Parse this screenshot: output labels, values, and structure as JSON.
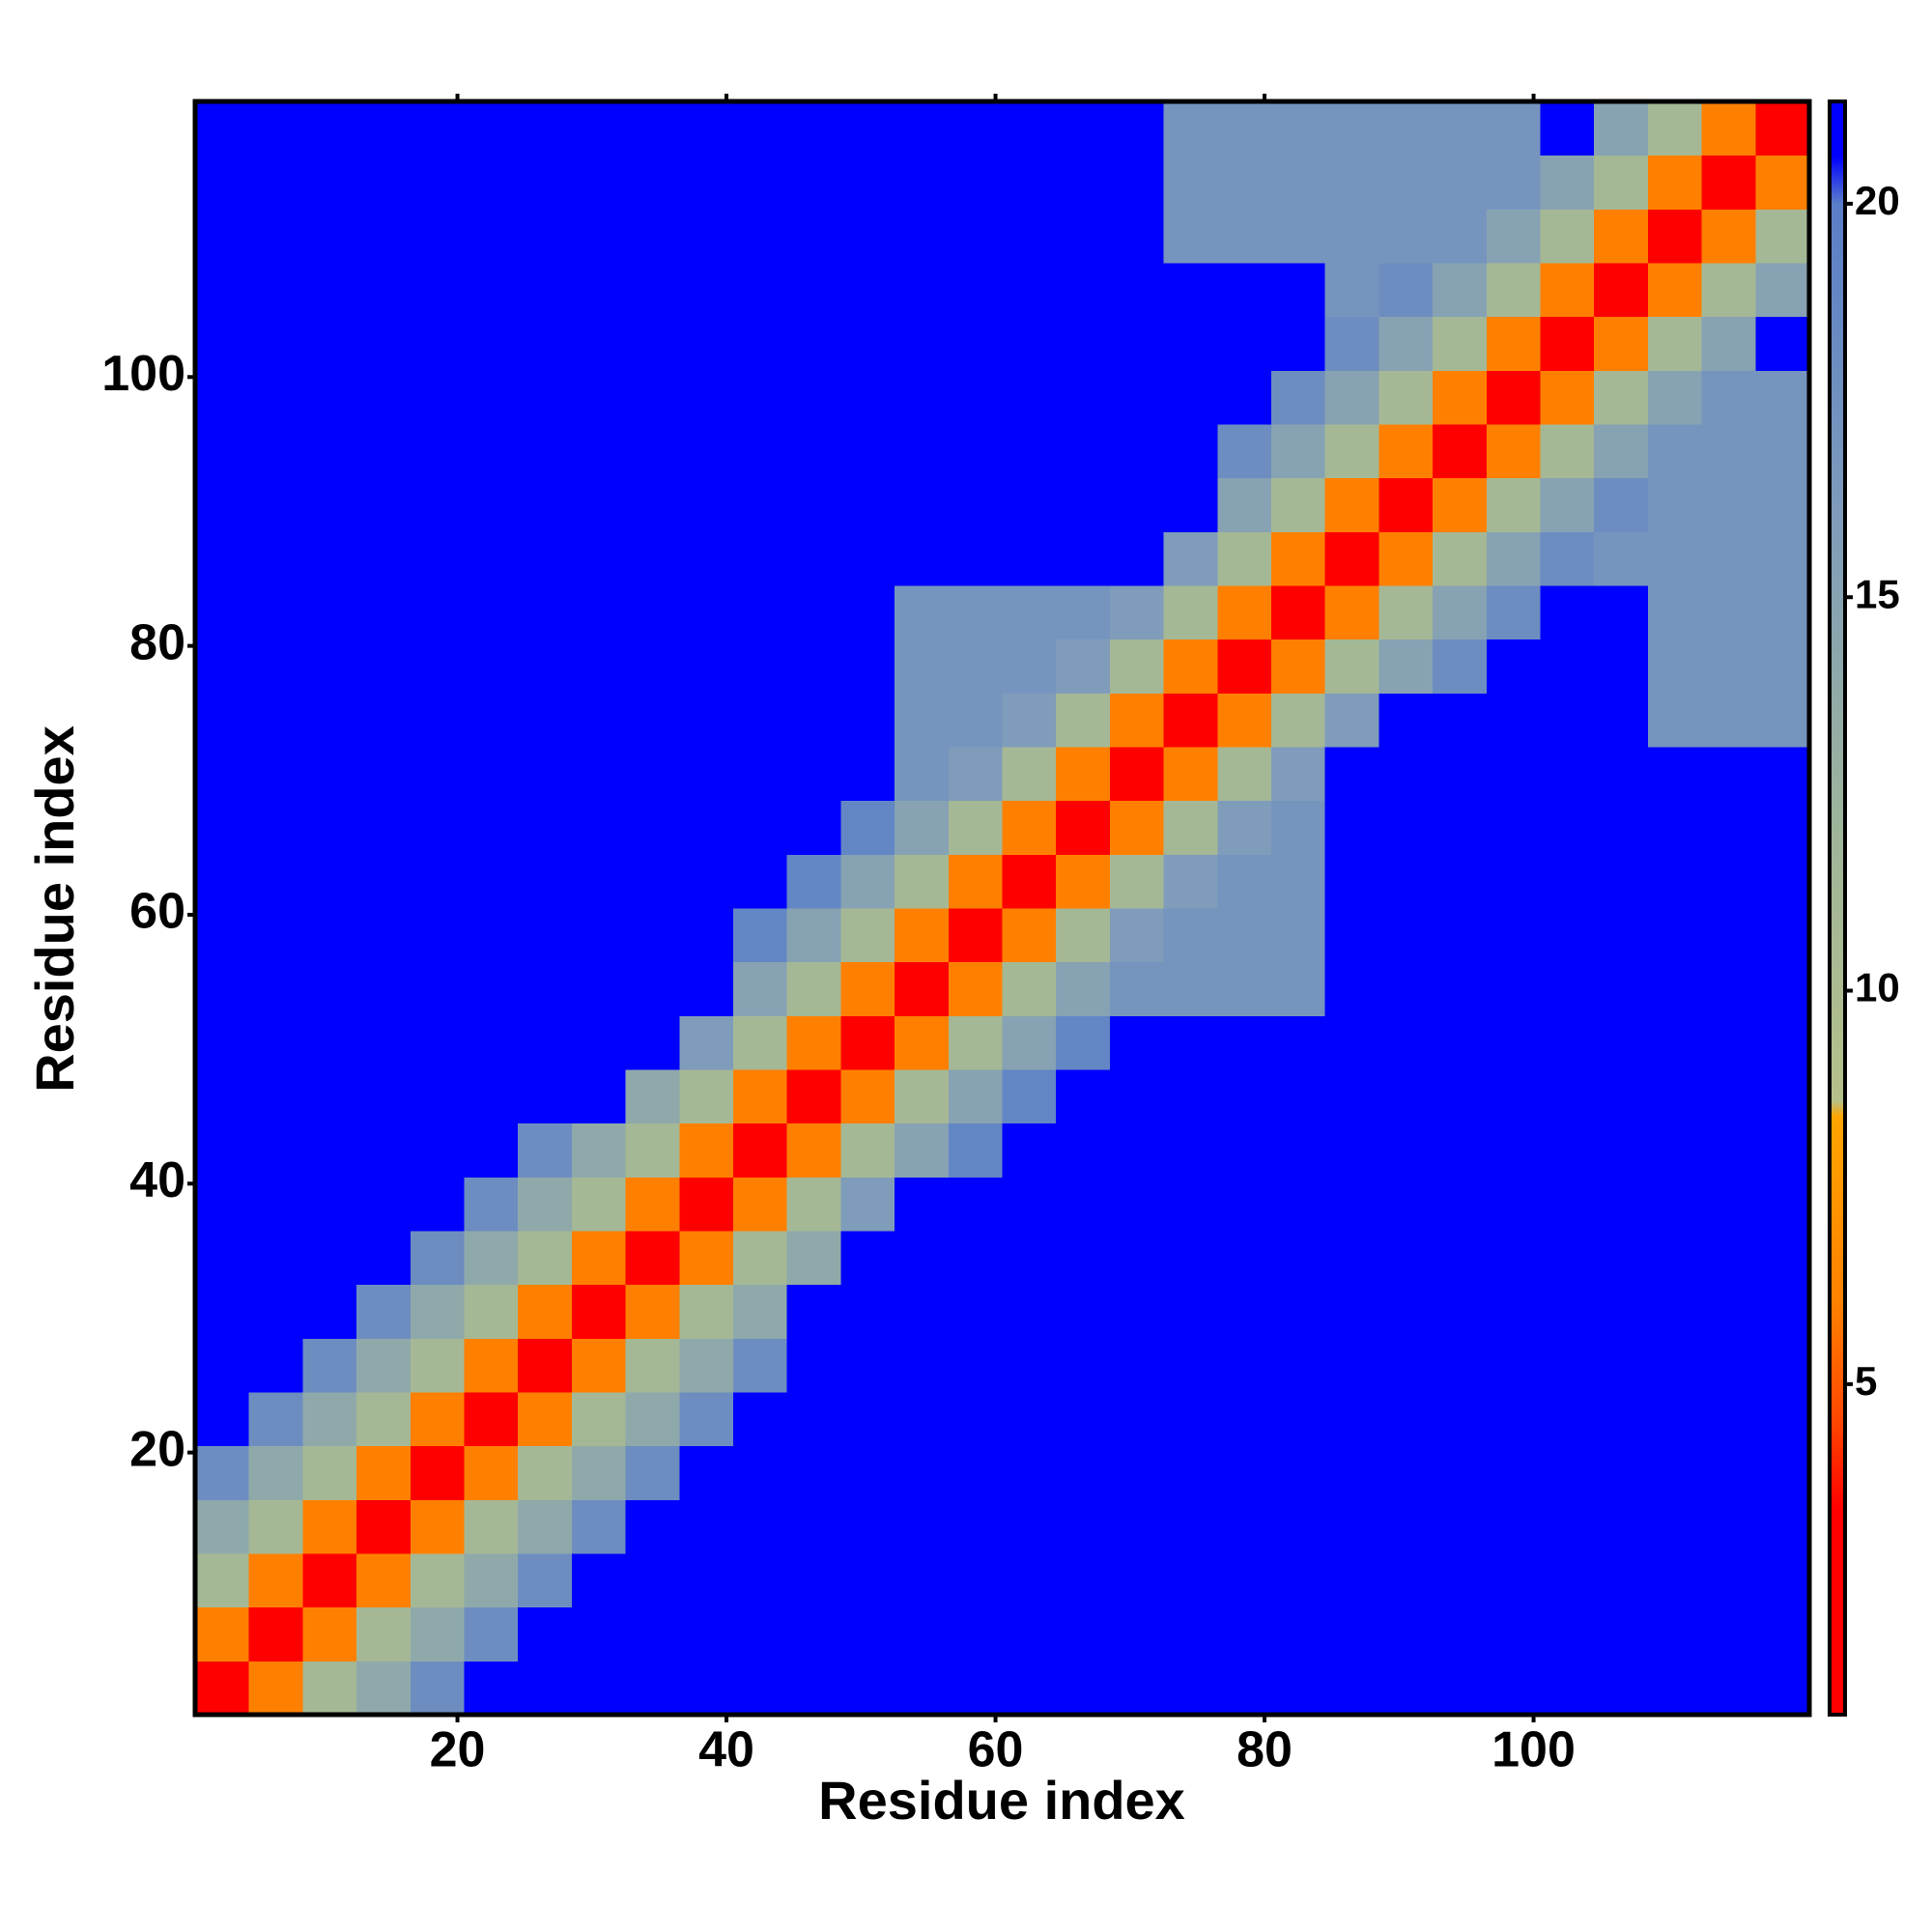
{
  "chart_data": {
    "type": "heatmap",
    "xlabel": "Residue index",
    "ylabel": "Residue index",
    "xlim": [
      0.5,
      120.5
    ],
    "ylim": [
      0.5,
      120.5
    ],
    "xticks": [
      20,
      40,
      60,
      80,
      100
    ],
    "yticks": [
      20,
      40,
      60,
      80,
      100
    ],
    "xbins": [
      0.5,
      4.5,
      8.5,
      12.5,
      16.5,
      20.5,
      24.5,
      28.5,
      32.5,
      36.5,
      40.5,
      44.5,
      48.5,
      52.5,
      56.5,
      60.5,
      64.5,
      68.5,
      72.5,
      76.5,
      80.5,
      84.5,
      88.5,
      92.5,
      96.5,
      100.5,
      104.5,
      108.5,
      112.5,
      116.5,
      120.5
    ],
    "ybins": [
      0.5,
      4.5,
      8.5,
      12.5,
      16.5,
      20.5,
      24.5,
      28.5,
      32.5,
      36.5,
      40.5,
      44.5,
      48.5,
      52.5,
      56.5,
      60.5,
      64.5,
      68.5,
      72.5,
      76.5,
      80.5,
      84.5,
      88.5,
      92.5,
      96.5,
      100.5,
      104.5,
      108.5,
      112.5,
      116.5,
      120.5
    ],
    "zlim": [
      0.8,
      21.3
    ],
    "colorbar_ticks": [
      5,
      10,
      15,
      20
    ],
    "colorscale": [
      [
        0.8,
        "#ff0000"
      ],
      [
        3.4,
        "#ff0000"
      ],
      [
        4.5,
        "#ff4500"
      ],
      [
        6,
        "#ff8000"
      ],
      [
        8.4,
        "#ffa500"
      ],
      [
        8.6,
        "#b5c08a"
      ],
      [
        12,
        "#9fb59a"
      ],
      [
        16,
        "#7f9cba"
      ],
      [
        20,
        "#5a7ec8"
      ],
      [
        20.6,
        "#0000ff"
      ],
      [
        21.3,
        "#0000ff"
      ]
    ],
    "z": [
      [
        2,
        6,
        11,
        14,
        18,
        21,
        21,
        21,
        21,
        21,
        21,
        21,
        21,
        21,
        21,
        21,
        21,
        21,
        21,
        21,
        21,
        21,
        21,
        21,
        21,
        21,
        21,
        21,
        21,
        21
      ],
      [
        6,
        2,
        6,
        11,
        14,
        18,
        21,
        21,
        21,
        21,
        21,
        21,
        21,
        21,
        21,
        21,
        21,
        21,
        21,
        21,
        21,
        21,
        21,
        21,
        21,
        21,
        21,
        21,
        21,
        21
      ],
      [
        11,
        6,
        2,
        6,
        11,
        14,
        18,
        21,
        21,
        21,
        21,
        21,
        21,
        21,
        21,
        21,
        21,
        21,
        21,
        21,
        21,
        21,
        21,
        21,
        21,
        21,
        21,
        21,
        21,
        21
      ],
      [
        14,
        11,
        6,
        2,
        6,
        11,
        14,
        18,
        21,
        21,
        21,
        21,
        21,
        21,
        21,
        21,
        21,
        21,
        21,
        21,
        21,
        21,
        21,
        21,
        21,
        21,
        21,
        21,
        21,
        21
      ],
      [
        18,
        14,
        11,
        6,
        2,
        6,
        11,
        14,
        18,
        21,
        21,
        21,
        21,
        21,
        21,
        21,
        21,
        21,
        21,
        21,
        21,
        21,
        21,
        21,
        21,
        21,
        21,
        21,
        21,
        21
      ],
      [
        21,
        18,
        14,
        11,
        6,
        2,
        6,
        11,
        14,
        18,
        21,
        21,
        21,
        21,
        21,
        21,
        21,
        21,
        21,
        21,
        21,
        21,
        21,
        21,
        21,
        21,
        21,
        21,
        21,
        21
      ],
      [
        21,
        21,
        18,
        14,
        11,
        6,
        2,
        6,
        11,
        14,
        18,
        21,
        21,
        21,
        21,
        21,
        21,
        21,
        21,
        21,
        21,
        21,
        21,
        21,
        21,
        21,
        21,
        21,
        21,
        21
      ],
      [
        21,
        21,
        21,
        18,
        14,
        11,
        6,
        2,
        6,
        11,
        14,
        21,
        21,
        21,
        21,
        21,
        21,
        21,
        21,
        21,
        21,
        21,
        21,
        21,
        21,
        21,
        21,
        21,
        21,
        21
      ],
      [
        21,
        21,
        21,
        21,
        18,
        14,
        11,
        6,
        2,
        6,
        11,
        14,
        21,
        21,
        21,
        21,
        21,
        21,
        21,
        21,
        21,
        21,
        21,
        21,
        21,
        21,
        21,
        21,
        21,
        21
      ],
      [
        21,
        21,
        21,
        21,
        21,
        18,
        14,
        11,
        6,
        2,
        6,
        11,
        16,
        21,
        21,
        21,
        21,
        21,
        21,
        21,
        21,
        21,
        21,
        21,
        21,
        21,
        21,
        21,
        21,
        21
      ],
      [
        21,
        21,
        21,
        21,
        21,
        21,
        18,
        14,
        11,
        6,
        2,
        6,
        11,
        15,
        19,
        21,
        21,
        21,
        21,
        21,
        21,
        21,
        21,
        21,
        21,
        21,
        21,
        21,
        21,
        21
      ],
      [
        21,
        21,
        21,
        21,
        21,
        21,
        21,
        21,
        14,
        11,
        6,
        2,
        6,
        11,
        15,
        19,
        21,
        21,
        21,
        21,
        21,
        21,
        21,
        21,
        21,
        21,
        21,
        21,
        21,
        21
      ],
      [
        21,
        21,
        21,
        21,
        21,
        21,
        21,
        21,
        21,
        16,
        11,
        6,
        2,
        6,
        11,
        15,
        19,
        21,
        21,
        21,
        21,
        21,
        21,
        21,
        21,
        21,
        21,
        21,
        21,
        21
      ],
      [
        21,
        21,
        21,
        21,
        21,
        21,
        21,
        21,
        21,
        21,
        15,
        11,
        6,
        2,
        6,
        11,
        15,
        17,
        17,
        17,
        17,
        21,
        21,
        21,
        21,
        21,
        21,
        21,
        21,
        21
      ],
      [
        21,
        21,
        21,
        21,
        21,
        21,
        21,
        21,
        21,
        21,
        19,
        15,
        11,
        6,
        2,
        6,
        11,
        16,
        17,
        17,
        17,
        21,
        21,
        21,
        21,
        21,
        21,
        21,
        21,
        21
      ],
      [
        21,
        21,
        21,
        21,
        21,
        21,
        21,
        21,
        21,
        21,
        21,
        19,
        15,
        11,
        6,
        2,
        6,
        11,
        16,
        17,
        17,
        21,
        21,
        21,
        21,
        21,
        21,
        21,
        21,
        21
      ],
      [
        21,
        21,
        21,
        21,
        21,
        21,
        21,
        21,
        21,
        21,
        21,
        21,
        19,
        15,
        11,
        6,
        2,
        6,
        11,
        16,
        17,
        21,
        21,
        21,
        21,
        21,
        21,
        21,
        21,
        21
      ],
      [
        21,
        21,
        21,
        21,
        21,
        21,
        21,
        21,
        21,
        21,
        21,
        21,
        21,
        17,
        16,
        11,
        6,
        2,
        6,
        11,
        16,
        21,
        21,
        21,
        21,
        21,
        21,
        21,
        21,
        21
      ],
      [
        21,
        21,
        21,
        21,
        21,
        21,
        21,
        21,
        21,
        21,
        21,
        21,
        21,
        17,
        17,
        16,
        11,
        6,
        2,
        6,
        11,
        16,
        21,
        21,
        21,
        21,
        21,
        17,
        17,
        17
      ],
      [
        21,
        21,
        21,
        21,
        21,
        21,
        21,
        21,
        21,
        21,
        21,
        21,
        21,
        17,
        17,
        17,
        16,
        11,
        6,
        2,
        6,
        11,
        15,
        18,
        21,
        21,
        21,
        17,
        17,
        17
      ],
      [
        21,
        21,
        21,
        21,
        21,
        21,
        21,
        21,
        21,
        21,
        21,
        21,
        21,
        17,
        17,
        17,
        17,
        16,
        11,
        6,
        2,
        6,
        11,
        15,
        18,
        21,
        21,
        17,
        17,
        17
      ],
      [
        21,
        21,
        21,
        21,
        21,
        21,
        21,
        21,
        21,
        21,
        21,
        21,
        21,
        21,
        21,
        21,
        21,
        21,
        16,
        11,
        6,
        2,
        6,
        11,
        15,
        18,
        17,
        17,
        17,
        17
      ],
      [
        21,
        21,
        21,
        21,
        21,
        21,
        21,
        21,
        21,
        21,
        21,
        21,
        21,
        21,
        21,
        21,
        21,
        21,
        21,
        15,
        11,
        6,
        2,
        6,
        11,
        15,
        18,
        17,
        17,
        17
      ],
      [
        21,
        21,
        21,
        21,
        21,
        21,
        21,
        21,
        21,
        21,
        21,
        21,
        21,
        21,
        21,
        21,
        21,
        21,
        21,
        18,
        15,
        11,
        6,
        2,
        6,
        11,
        15,
        17,
        17,
        17
      ],
      [
        21,
        21,
        21,
        21,
        21,
        21,
        21,
        21,
        21,
        21,
        21,
        21,
        21,
        21,
        21,
        21,
        21,
        21,
        21,
        21,
        18,
        15,
        11,
        6,
        2,
        6,
        11,
        15,
        17,
        17
      ],
      [
        21,
        21,
        21,
        21,
        21,
        21,
        21,
        21,
        21,
        21,
        21,
        21,
        21,
        21,
        21,
        21,
        21,
        21,
        21,
        21,
        21,
        18,
        15,
        11,
        6,
        2,
        6,
        11,
        15,
        21
      ],
      [
        21,
        21,
        21,
        21,
        21,
        21,
        21,
        21,
        21,
        21,
        21,
        21,
        21,
        21,
        21,
        21,
        21,
        21,
        21,
        21,
        21,
        17,
        18,
        15,
        11,
        6,
        2,
        6,
        11,
        15
      ],
      [
        21,
        21,
        21,
        21,
        21,
        21,
        21,
        21,
        21,
        21,
        21,
        21,
        21,
        21,
        21,
        21,
        21,
        21,
        17,
        17,
        17,
        17,
        17,
        17,
        15,
        11,
        6,
        2,
        6,
        11
      ],
      [
        21,
        21,
        21,
        21,
        21,
        21,
        21,
        21,
        21,
        21,
        21,
        21,
        21,
        21,
        21,
        21,
        21,
        21,
        17,
        17,
        17,
        17,
        17,
        17,
        17,
        15,
        11,
        6,
        2,
        6
      ],
      [
        21,
        21,
        21,
        21,
        21,
        21,
        21,
        21,
        21,
        21,
        21,
        21,
        21,
        21,
        21,
        21,
        21,
        21,
        17,
        17,
        17,
        17,
        17,
        17,
        17,
        21,
        15,
        11,
        6,
        2
      ]
    ]
  }
}
